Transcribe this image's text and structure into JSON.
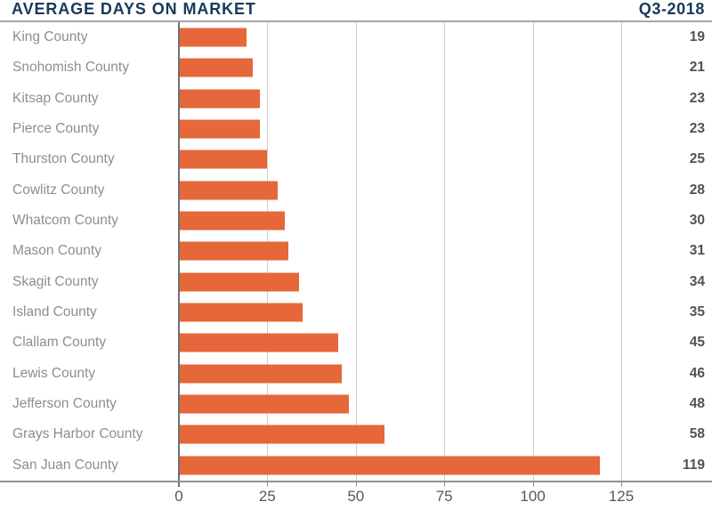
{
  "header": {
    "title": "AVERAGE DAYS ON MARKET",
    "period": "Q3-2018"
  },
  "chart_data": {
    "type": "bar",
    "orientation": "horizontal",
    "title": "AVERAGE DAYS ON MARKET",
    "subtitle": "Q3-2018",
    "categories": [
      "King County",
      "Snohomish County",
      "Kitsap County",
      "Pierce County",
      "Thurston County",
      "Cowlitz County",
      "Whatcom County",
      "Mason County",
      "Skagit County",
      "Island County",
      "Clallam County",
      "Lewis County",
      "Jefferson County",
      "Grays Harbor County",
      "San Juan County"
    ],
    "values": [
      19,
      21,
      23,
      23,
      25,
      28,
      30,
      31,
      34,
      35,
      45,
      46,
      48,
      58,
      119
    ],
    "value_labels_position": "right",
    "xlabel": "",
    "ylabel": "",
    "xlim": [
      0,
      150
    ],
    "xticks": [
      0,
      25,
      50,
      75,
      100,
      125
    ],
    "grid": true,
    "legend": false
  },
  "colors": {
    "bar": "#e5673a",
    "title": "#17395c",
    "category_label": "#8c8e91",
    "value_label": "#505254",
    "gridline": "#cfcfcf",
    "axis_line": "#8f9194"
  }
}
